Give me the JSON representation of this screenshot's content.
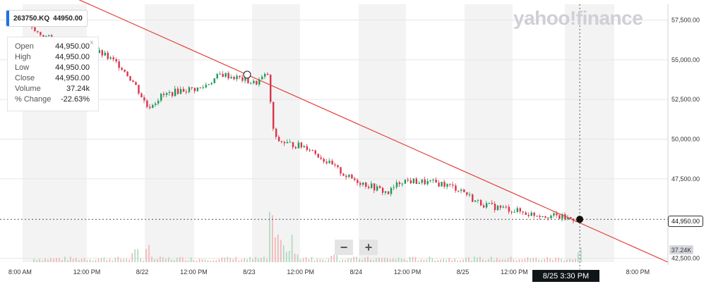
{
  "brand": {
    "logo_text": "yahoo!finance"
  },
  "ticker": {
    "symbol": "263750.KQ",
    "price": "44950.00"
  },
  "tooltip": {
    "close_icon": "×",
    "rows": [
      {
        "label": "Open",
        "value": "44,950.00"
      },
      {
        "label": "High",
        "value": "44,950.00"
      },
      {
        "label": "Low",
        "value": "44,950.00"
      },
      {
        "label": "Close",
        "value": "44,950.00"
      },
      {
        "label": "Volume",
        "value": "37.24k"
      },
      {
        "label": "% Change",
        "value": "-22.63%"
      }
    ]
  },
  "controls": {
    "zoom_out": "−",
    "zoom_in": "+"
  },
  "crosshair": {
    "price_label": "44,950.00",
    "volume_label": "37.24K",
    "date_label": "8/25 3:30 PM"
  },
  "colors": {
    "up": "#1a9b5a",
    "down": "#d8344a",
    "trendline": "#e3403a",
    "volume_up": "#a9d9bd",
    "volume_down": "#f2b3b3"
  },
  "chart_data": {
    "type": "candlestick",
    "y_ticks": [
      "57,500.00",
      "55,000.00",
      "52,500.00",
      "50,000.00",
      "47,500.00",
      "42,500.00"
    ],
    "x_ticks": [
      "8:00 AM",
      "12:00 PM",
      "8/22",
      "12:00 PM",
      "8/23",
      "12:00 PM",
      "8/24",
      "12:00 PM",
      "8/25",
      "12:00 PM",
      "8:00 PM"
    ],
    "ylim": [
      42250,
      58500
    ],
    "grid": true,
    "price_series": [
      {
        "x": 0.03,
        "y": 57600
      },
      {
        "x": 0.05,
        "y": 56800
      },
      {
        "x": 0.08,
        "y": 56200
      },
      {
        "x": 0.12,
        "y": 55700
      },
      {
        "x": 0.15,
        "y": 55400
      },
      {
        "x": 0.18,
        "y": 54600
      },
      {
        "x": 0.2,
        "y": 53500
      },
      {
        "x": 0.22,
        "y": 52000
      },
      {
        "x": 0.24,
        "y": 52700
      },
      {
        "x": 0.27,
        "y": 53100
      },
      {
        "x": 0.3,
        "y": 53200
      },
      {
        "x": 0.33,
        "y": 54100
      },
      {
        "x": 0.36,
        "y": 53800
      },
      {
        "x": 0.38,
        "y": 53500
      },
      {
        "x": 0.4,
        "y": 54100
      },
      {
        "x": 0.405,
        "y": 51600
      },
      {
        "x": 0.41,
        "y": 50000
      },
      {
        "x": 0.43,
        "y": 49700
      },
      {
        "x": 0.46,
        "y": 49500
      },
      {
        "x": 0.49,
        "y": 48500
      },
      {
        "x": 0.52,
        "y": 47600
      },
      {
        "x": 0.55,
        "y": 47100
      },
      {
        "x": 0.58,
        "y": 46600
      },
      {
        "x": 0.6,
        "y": 47400
      },
      {
        "x": 0.63,
        "y": 47300
      },
      {
        "x": 0.66,
        "y": 47200
      },
      {
        "x": 0.69,
        "y": 46800
      },
      {
        "x": 0.71,
        "y": 46100
      },
      {
        "x": 0.73,
        "y": 45800
      },
      {
        "x": 0.76,
        "y": 45600
      },
      {
        "x": 0.79,
        "y": 45300
      },
      {
        "x": 0.82,
        "y": 45200
      },
      {
        "x": 0.85,
        "y": 45000
      },
      {
        "x": 0.868,
        "y": 44950
      }
    ],
    "trendline": {
      "start": {
        "x": 0.0,
        "y": 61000
      },
      "end": {
        "x": 1.0,
        "y": 42250
      }
    },
    "volume": [
      {
        "x": 0.405,
        "v": 1.0
      },
      {
        "x": 0.41,
        "v": 0.55
      },
      {
        "x": 0.2,
        "v": 0.25
      },
      {
        "x": 0.22,
        "v": 0.35
      },
      {
        "x": 0.44,
        "v": 0.2
      },
      {
        "x": 0.5,
        "v": 0.18
      },
      {
        "x": 0.87,
        "v": 0.3
      }
    ]
  }
}
